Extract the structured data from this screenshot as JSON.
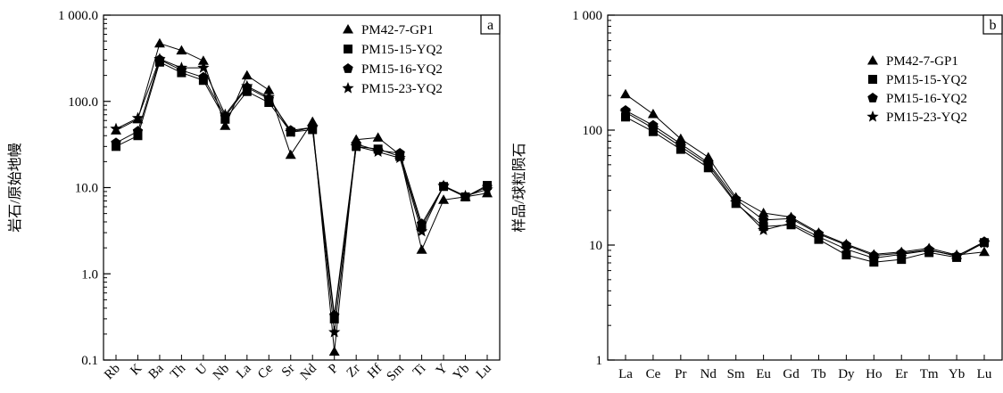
{
  "chart_data": [
    {
      "panel": "a",
      "type": "line",
      "ylabel": "岩石/原始地幔",
      "yscale": "log",
      "ylim": [
        0.1,
        1000
      ],
      "yticks": [
        {
          "value": 1000,
          "label": "1 000.0"
        },
        {
          "value": 100,
          "label": "100.0"
        },
        {
          "value": 10,
          "label": "10.0"
        },
        {
          "value": 1,
          "label": "1.0"
        },
        {
          "value": 0.1,
          "label": "0.1"
        }
      ],
      "categories": [
        "Rb",
        "K",
        "Ba",
        "Th",
        "U",
        "Nb",
        "La",
        "Ce",
        "Sr",
        "Nd",
        "P",
        "Zr",
        "Hf",
        "Sm",
        "Ti",
        "Y",
        "Yb",
        "Lu"
      ],
      "legend_position": "top-right",
      "series": [
        {
          "name": "PM42-7-GP1",
          "marker": "triangle",
          "values": [
            46,
            62,
            470,
            390,
            295,
            52,
            200,
            135,
            24,
            58,
            0.125,
            36,
            38,
            24,
            1.9,
            7.2,
            7.8,
            8.6
          ]
        },
        {
          "name": "PM15-15-YQ2",
          "marker": "square",
          "values": [
            30,
            40,
            285,
            215,
            175,
            62,
            130,
            97,
            44,
            47,
            0.3,
            30,
            28,
            23,
            3.5,
            10.3,
            7.8,
            10.6
          ]
        },
        {
          "name": "PM15-16-YQ2",
          "marker": "pentagon",
          "values": [
            33,
            45,
            305,
            230,
            190,
            67,
            145,
            107,
            46,
            50,
            0.33,
            32,
            27,
            25,
            3.8,
            10.4,
            7.8,
            10.2
          ]
        },
        {
          "name": "PM15-23-YQ2",
          "marker": "star",
          "values": [
            48,
            64,
            310,
            245,
            245,
            70,
            150,
            112,
            44,
            50,
            0.21,
            30,
            26,
            22,
            3.1,
            10.5,
            8.0,
            9.5
          ]
        }
      ]
    },
    {
      "panel": "b",
      "type": "line",
      "ylabel": "样品/球粒陨石",
      "yscale": "log",
      "ylim": [
        1,
        1000
      ],
      "yticks": [
        {
          "value": 1000,
          "label": "1 000"
        },
        {
          "value": 100,
          "label": "100"
        },
        {
          "value": 10,
          "label": "10"
        },
        {
          "value": 1,
          "label": "1"
        }
      ],
      "categories": [
        "La",
        "Ce",
        "Pr",
        "Nd",
        "Sm",
        "Eu",
        "Gd",
        "Tb",
        "Dy",
        "Ho",
        "Er",
        "Tm",
        "Yb",
        "Lu"
      ],
      "legend_position": "top-right",
      "series": [
        {
          "name": "PM42-7-GP1",
          "marker": "triangle",
          "values": [
            205,
            138,
            84,
            58,
            26,
            19,
            17.5,
            12.8,
            10.2,
            8.3,
            8.7,
            9.4,
            8.2,
            8.7
          ]
        },
        {
          "name": "PM15-15-YQ2",
          "marker": "square",
          "values": [
            130,
            97,
            68,
            47,
            23,
            14.5,
            15,
            11.2,
            8.2,
            7.1,
            7.5,
            8.6,
            7.8,
            10.5
          ]
        },
        {
          "name": "PM15-16-YQ2",
          "marker": "pentagon",
          "values": [
            148,
            110,
            76,
            52,
            25,
            16.5,
            17,
            12.5,
            10,
            8.1,
            8.5,
            9.1,
            8.0,
            10.7
          ]
        },
        {
          "name": "PM15-23-YQ2",
          "marker": "star",
          "values": [
            143,
            104,
            72,
            50,
            23.5,
            13.5,
            15.5,
            11.8,
            9.2,
            7.7,
            8.3,
            9.0,
            8.1,
            10.4
          ]
        }
      ]
    }
  ]
}
